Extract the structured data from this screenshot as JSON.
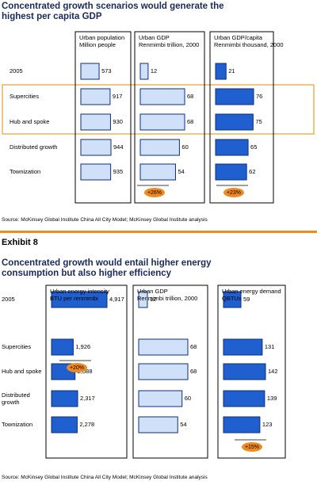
{
  "chart_data": [
    {
      "type": "bar",
      "title": "Concentrated growth scenarios would generate the highest per capita GDP",
      "categories": [
        "2005",
        "Supercities",
        "Hub and spoke",
        "Distributed growth",
        "Townization"
      ],
      "panels": [
        {
          "title": "Urban population",
          "subtitle": "Million people",
          "color": "#cfe0f8",
          "values": [
            573,
            917,
            930,
            944,
            935
          ]
        },
        {
          "title": "Urban GDP",
          "subtitle": "Renmimbi trillion, 2000",
          "color": "#cfe0f8",
          "values": [
            12,
            68,
            68,
            60,
            54
          ],
          "annotation": "+26%"
        },
        {
          "title": "Urban GDP/capita",
          "subtitle": "Renmimbi thousand, 2000",
          "color": "#1f5fd0",
          "values": [
            21,
            76,
            75,
            65,
            62
          ],
          "annotation": "+23%"
        }
      ],
      "source": "Source: McKinsey Global Institute China All City Model; McKinsey Global Institute analysis"
    },
    {
      "type": "bar",
      "label": "Exhibit 8",
      "title": "Concentrated growth would entail higher energy consumption but also higher efficiency",
      "categories": [
        "2005",
        "Supercities",
        "Hub and spoke",
        "Distributed growth",
        "Townization"
      ],
      "panels": [
        {
          "title": "Urban energy intensity",
          "subtitle": "BTU per renmimbi",
          "color": "#1f5fd0",
          "values": [
            4917,
            1926,
            2088,
            2317,
            2278
          ],
          "value_labels": [
            "4,917",
            "1,926",
            "2,088",
            "2,317",
            "2,278"
          ],
          "annotation": "+20%"
        },
        {
          "title": "Urban GDP",
          "subtitle": "Renmimbi trillion, 2000",
          "color": "#cfe0f8",
          "values": [
            12,
            68,
            68,
            60,
            54
          ]
        },
        {
          "title": "Urban energy demand",
          "subtitle": "QBTUs",
          "color": "#1f5fd0",
          "values": [
            59,
            131,
            142,
            139,
            123
          ],
          "annotation": "+15%"
        }
      ],
      "source": "Source: McKinsey Global Institute China All City Model; McKinsey Global Institute analysis"
    }
  ]
}
